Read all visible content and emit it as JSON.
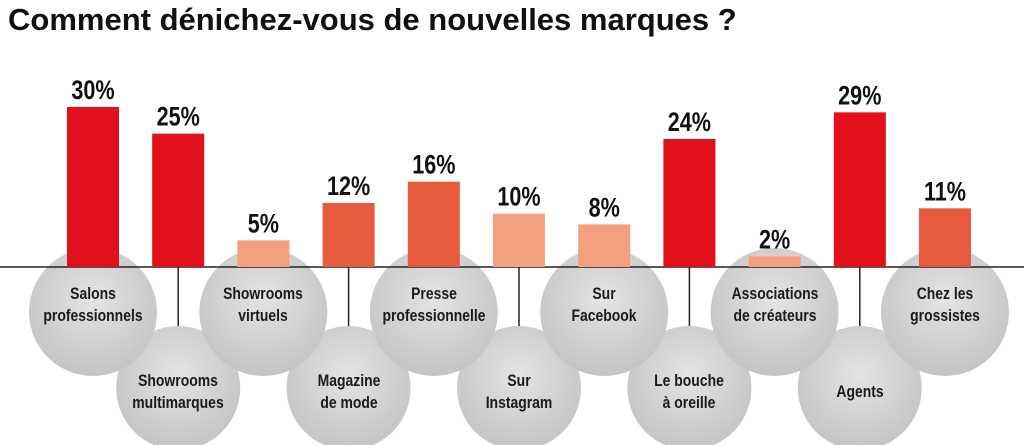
{
  "chart_data": {
    "type": "bar",
    "title": "Comment dénichez-vous de nouvelles marques ?",
    "categories": [
      "Salons\nprofessionnels",
      "Showrooms\nmultimarques",
      "Showrooms\nvirtuels",
      "Magazine\nde mode",
      "Presse\nprofessionnelle",
      "Sur\nInstagram",
      "Sur\nFacebook",
      "Le bouche\nà oreille",
      "Associations\nde créateurs",
      "Agents",
      "Chez les\ngrossistes"
    ],
    "values": [
      30,
      25,
      5,
      12,
      16,
      10,
      8,
      24,
      2,
      29,
      11
    ],
    "value_labels": [
      "30%",
      "25%",
      "5%",
      "12%",
      "16%",
      "10%",
      "8%",
      "24%",
      "2%",
      "29%",
      "11%"
    ],
    "colors": [
      "#e2101a",
      "#e2101a",
      "#f2a07e",
      "#e65a3e",
      "#e65a3e",
      "#f2a07e",
      "#f2a07e",
      "#e2101a",
      "#f2a07e",
      "#e2101a",
      "#e65a3e"
    ],
    "ylim": [
      0,
      30
    ]
  }
}
